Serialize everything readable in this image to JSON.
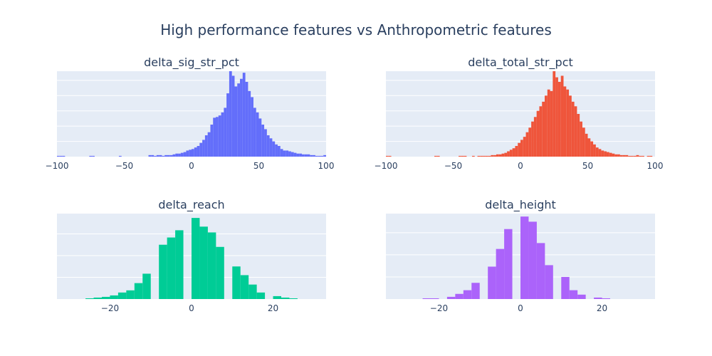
{
  "figure_title": "High performance features vs Anthropometric features",
  "chart_data": [
    {
      "type": "histogram",
      "title": "delta_sig_str_pct",
      "color": "#636efa",
      "xlim": [
        -100,
        100
      ],
      "xticks": [
        -100,
        -50,
        0,
        50,
        100
      ],
      "xtick_labels": [
        "−100",
        "−50",
        "0",
        "50",
        "100"
      ],
      "ylim": [
        0,
        112
      ],
      "grid_y": [
        0,
        20,
        40,
        60,
        80,
        100
      ],
      "bin_start": -100,
      "bin_width": 2,
      "counts": [
        1,
        1,
        1,
        0,
        0,
        0,
        0,
        0,
        0,
        0,
        0,
        0,
        1,
        1,
        0,
        0,
        0,
        0,
        0,
        0,
        0,
        0,
        0,
        1,
        0,
        0,
        0,
        0,
        0,
        0,
        0,
        0,
        0,
        0,
        2,
        2,
        1,
        2,
        2,
        1,
        2,
        2,
        2,
        3,
        4,
        4,
        5,
        6,
        8,
        9,
        10,
        12,
        14,
        18,
        22,
        28,
        32,
        42,
        51,
        52,
        54,
        58,
        64,
        83,
        112,
        106,
        92,
        96,
        102,
        110,
        98,
        86,
        78,
        64,
        58,
        50,
        42,
        36,
        28,
        24,
        20,
        16,
        14,
        10,
        8,
        8,
        7,
        6,
        5,
        4,
        4,
        3,
        3,
        3,
        2,
        2,
        1,
        1,
        1,
        2,
        2,
        2,
        1,
        1,
        2,
        1,
        1,
        0,
        1,
        1,
        0,
        0,
        1,
        0,
        0,
        0,
        0,
        0,
        0,
        2,
        4
      ]
    },
    {
      "type": "histogram",
      "title": "delta_total_str_pct",
      "color": "#ef553b",
      "xlim": [
        -100,
        100
      ],
      "xticks": [
        -100,
        -50,
        0,
        50,
        100
      ],
      "xtick_labels": [
        "−100",
        "−50",
        "0",
        "50",
        "100"
      ],
      "ylim": [
        0,
        112
      ],
      "grid_y": [
        0,
        20,
        40,
        60,
        80,
        100
      ],
      "bin_start": -100,
      "bin_width": 2,
      "counts": [
        1,
        1,
        0,
        0,
        0,
        0,
        0,
        0,
        0,
        0,
        0,
        0,
        0,
        0,
        0,
        0,
        0,
        0,
        1,
        1,
        0,
        0,
        0,
        0,
        0,
        0,
        0,
        1,
        1,
        1,
        0,
        0,
        1,
        0,
        1,
        1,
        1,
        1,
        1,
        2,
        2,
        3,
        3,
        4,
        5,
        7,
        9,
        11,
        14,
        18,
        22,
        26,
        32,
        38,
        46,
        52,
        60,
        66,
        72,
        80,
        88,
        86,
        112,
        104,
        98,
        106,
        92,
        88,
        80,
        72,
        66,
        56,
        46,
        38,
        30,
        24,
        20,
        16,
        12,
        10,
        8,
        7,
        6,
        5,
        4,
        3,
        3,
        2,
        2,
        2,
        1,
        1,
        1,
        2,
        1,
        1,
        0,
        1,
        1,
        0,
        1,
        0,
        0,
        0,
        0,
        0,
        0,
        0,
        0,
        0,
        4
      ]
    },
    {
      "type": "histogram",
      "title": "delta_reach",
      "color": "#00cc96",
      "xlim": [
        -33,
        33
      ],
      "xticks": [
        -20,
        0,
        20
      ],
      "xtick_labels": [
        "−20",
        "0",
        "20"
      ],
      "ylim": [
        0,
        118
      ],
      "grid_y": [
        0,
        30,
        60,
        90
      ],
      "bin_start": -26,
      "bin_width": 2,
      "counts": [
        1,
        2,
        3,
        5,
        9,
        12,
        22,
        35,
        0,
        75,
        85,
        95,
        0,
        112,
        100,
        92,
        72,
        0,
        45,
        33,
        20,
        9,
        0,
        4,
        2,
        1
      ]
    },
    {
      "type": "histogram",
      "title": "delta_height",
      "color": "#ab63fa",
      "xlim": [
        -33,
        33
      ],
      "xticks": [
        -20,
        0,
        20
      ],
      "xtick_labels": [
        "−20",
        "0",
        "20"
      ],
      "ylim": [
        0,
        116
      ],
      "grid_y": [
        0,
        30,
        60,
        90
      ],
      "bin_start": -24,
      "bin_width": 2,
      "counts": [
        1,
        1,
        0,
        3,
        7,
        12,
        22,
        0,
        44,
        68,
        95,
        0,
        112,
        105,
        76,
        46,
        0,
        30,
        12,
        6,
        0,
        2,
        1
      ]
    }
  ]
}
